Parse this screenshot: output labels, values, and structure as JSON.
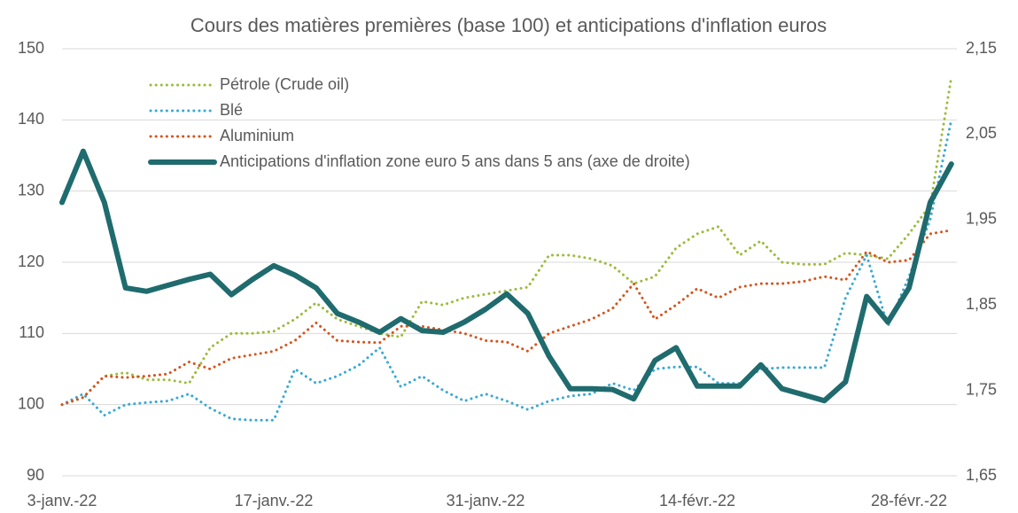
{
  "chart_data": {
    "type": "line",
    "title": "Cours des matières premières (base 100) et anticipations d'inflation euros",
    "categories": [
      "3-janv.-22",
      null,
      null,
      null,
      null,
      null,
      null,
      null,
      null,
      null,
      "17-janv.-22",
      null,
      null,
      null,
      null,
      null,
      null,
      null,
      null,
      null,
      "31-janv.-22",
      null,
      null,
      null,
      null,
      null,
      null,
      null,
      null,
      null,
      "14-févr.-22",
      null,
      null,
      null,
      null,
      null,
      null,
      null,
      null,
      null,
      "28-févr.-22",
      null,
      null
    ],
    "series": [
      {
        "name": "Pétrole (Crude oil)",
        "color": "#9bbb3b",
        "style": "dotted",
        "values": [
          100,
          101,
          104,
          104.5,
          103.5,
          103.5,
          103,
          108,
          110,
          110,
          110.3,
          112,
          114.3,
          112,
          111,
          110,
          109.5,
          114.5,
          114,
          115,
          115.5,
          116,
          116.5,
          121,
          121,
          120.5,
          119.5,
          117,
          118,
          122,
          124,
          125,
          121,
          123,
          120,
          119.7,
          119.7,
          121.3,
          121,
          120.5,
          124,
          128,
          146
        ]
      },
      {
        "name": "Blé",
        "color": "#3aa8d4",
        "style": "dotted",
        "values": [
          100,
          101.5,
          98.5,
          100,
          100.3,
          100.5,
          101.5,
          99.5,
          98,
          97.8,
          97.8,
          105,
          103,
          104,
          105.5,
          108,
          102.5,
          104,
          102,
          100.5,
          101.5,
          100.5,
          99.3,
          100.5,
          101.2,
          101.5,
          103,
          102,
          105,
          105.3,
          105.3,
          103,
          103,
          105,
          105.2,
          105.2,
          105.2,
          115,
          121,
          111,
          118,
          126,
          140
        ]
      },
      {
        "name": "Aluminium",
        "color": "#d4541c",
        "style": "dotted",
        "values": [
          100,
          101,
          104,
          103.8,
          104,
          104.3,
          106,
          105,
          106.5,
          107,
          107.5,
          109,
          111.5,
          109,
          108.8,
          108.7,
          111,
          111,
          110.5,
          110,
          109,
          108.8,
          107.5,
          110,
          111,
          112,
          113.5,
          117,
          112,
          114,
          116.3,
          115,
          116.5,
          117,
          117,
          117.3,
          118,
          117.5,
          121.5,
          120,
          120.3,
          124,
          124.5
        ]
      },
      {
        "name": "Anticipations d'inflation zone euro 5 ans dans 5 ans (axe de droite)",
        "color": "#1f6b6e",
        "style": "solid",
        "axis": "y2",
        "values": [
          1.97,
          2.03,
          1.97,
          1.87,
          1.866,
          1.873,
          1.88,
          1.886,
          1.862,
          1.88,
          1.896,
          1.885,
          1.87,
          1.84,
          1.83,
          1.818,
          1.834,
          1.82,
          1.818,
          1.83,
          1.845,
          1.863,
          1.84,
          1.79,
          1.752,
          1.752,
          1.751,
          1.74,
          1.785,
          1.8,
          1.755,
          1.755,
          1.755,
          1.78,
          1.752,
          1.745,
          1.738,
          1.76,
          1.86,
          1.83,
          1.87,
          1.97,
          2.015
        ]
      }
    ],
    "ylim": [
      90,
      150
    ],
    "yticks": [
      90,
      100,
      110,
      120,
      130,
      140,
      150
    ],
    "y2lim": [
      1.65,
      2.15
    ],
    "y2ticks": [
      {
        "value": 1.65,
        "label": "1,65"
      },
      {
        "value": 1.75,
        "label": "1,75"
      },
      {
        "value": 1.85,
        "label": "1,85"
      },
      {
        "value": 1.95,
        "label": "1,95"
      },
      {
        "value": 2.05,
        "label": "2,05"
      },
      {
        "value": 2.15,
        "label": "2,15"
      }
    ],
    "grid": true,
    "legend": "upper left"
  }
}
